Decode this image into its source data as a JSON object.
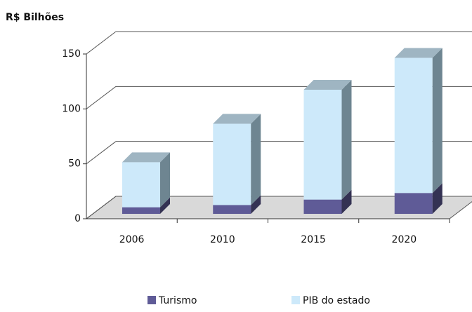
{
  "chart_data": {
    "type": "bar3d_stacked",
    "ylabel": "R$ Bilhões",
    "categories": [
      "2006",
      "2010",
      "2015",
      "2020"
    ],
    "series": [
      {
        "name": "Turismo",
        "color": "#5f5b97",
        "values": [
          6,
          8,
          13,
          19
        ]
      },
      {
        "name": "PIB do estado",
        "color": "#cde9fa",
        "values": [
          41,
          74,
          100,
          123
        ]
      }
    ],
    "ylim": [
      0,
      150
    ],
    "yticks": [
      0,
      50,
      100,
      150
    ],
    "grid": true,
    "legend": "bottom"
  }
}
